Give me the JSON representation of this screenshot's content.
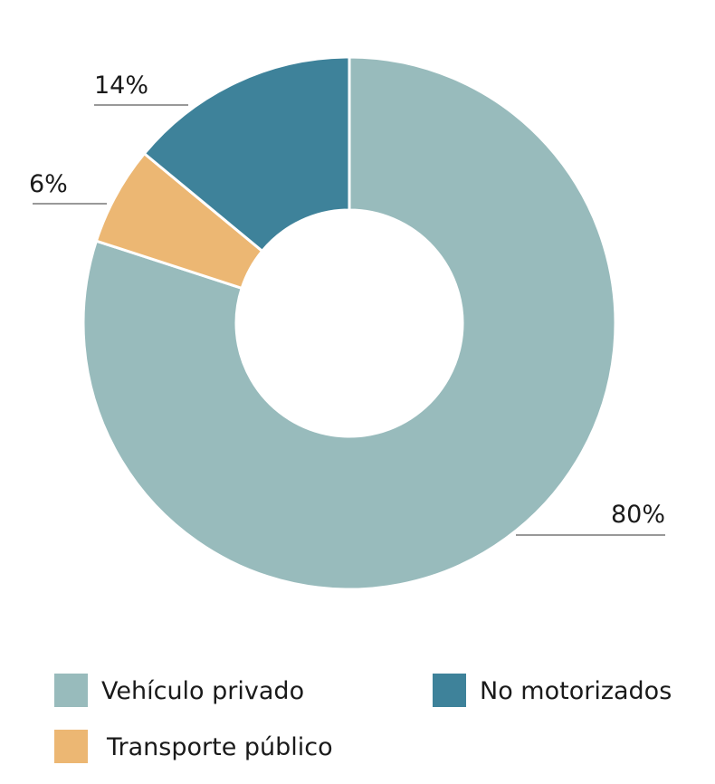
{
  "chart_data": {
    "type": "pie",
    "variant": "donut",
    "title": "",
    "categories": [
      "Vehículo privado",
      "Transporte público",
      "No motorizados"
    ],
    "values": [
      80,
      6,
      14
    ],
    "labels": [
      "80%",
      "6%",
      "14%"
    ],
    "colors": [
      "#98bbbc",
      "#ecb773",
      "#3e829a"
    ],
    "legend": {
      "placement": "bottom",
      "entries": [
        {
          "label": "Vehículo privado",
          "color": "#98bbbc"
        },
        {
          "label": "No motorizados",
          "color": "#3e829a"
        },
        {
          "label": "Transporte público",
          "color": "#ecb773"
        }
      ]
    },
    "grid": false
  }
}
